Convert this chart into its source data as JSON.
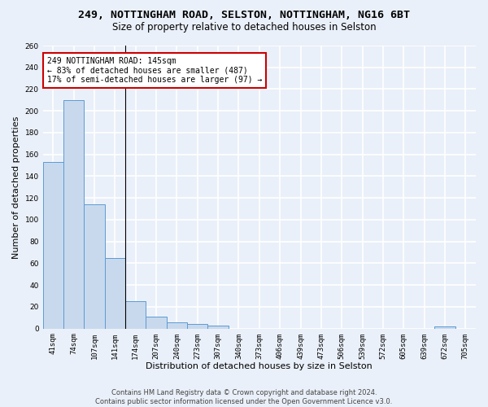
{
  "title_line1": "249, NOTTINGHAM ROAD, SELSTON, NOTTINGHAM, NG16 6BT",
  "title_line2": "Size of property relative to detached houses in Selston",
  "xlabel": "Distribution of detached houses by size in Selston",
  "ylabel": "Number of detached properties",
  "categories": [
    "41sqm",
    "74sqm",
    "107sqm",
    "141sqm",
    "174sqm",
    "207sqm",
    "240sqm",
    "273sqm",
    "307sqm",
    "340sqm",
    "373sqm",
    "406sqm",
    "439sqm",
    "473sqm",
    "506sqm",
    "539sqm",
    "572sqm",
    "605sqm",
    "639sqm",
    "672sqm",
    "705sqm"
  ],
  "values": [
    153,
    210,
    114,
    65,
    25,
    11,
    6,
    4,
    3,
    0,
    0,
    0,
    0,
    0,
    0,
    0,
    0,
    0,
    0,
    2,
    0
  ],
  "bar_color": "#c9d9ed",
  "bar_edge_color": "#5b9bd5",
  "background_color": "#eaf0f9",
  "grid_color": "#ffffff",
  "annotation_text_line1": "249 NOTTINGHAM ROAD: 145sqm",
  "annotation_text_line2": "← 83% of detached houses are smaller (487)",
  "annotation_text_line3": "17% of semi-detached houses are larger (97) →",
  "annotation_box_color": "#ffffff",
  "annotation_box_edge_color": "#cc0000",
  "ylim": [
    0,
    260
  ],
  "yticks": [
    0,
    20,
    40,
    60,
    80,
    100,
    120,
    140,
    160,
    180,
    200,
    220,
    240,
    260
  ],
  "footnote_line1": "Contains HM Land Registry data © Crown copyright and database right 2024.",
  "footnote_line2": "Contains public sector information licensed under the Open Government Licence v3.0.",
  "title_fontsize": 9.5,
  "subtitle_fontsize": 8.5,
  "axis_label_fontsize": 8,
  "tick_fontsize": 6.5,
  "annotation_fontsize": 7,
  "footnote_fontsize": 6
}
